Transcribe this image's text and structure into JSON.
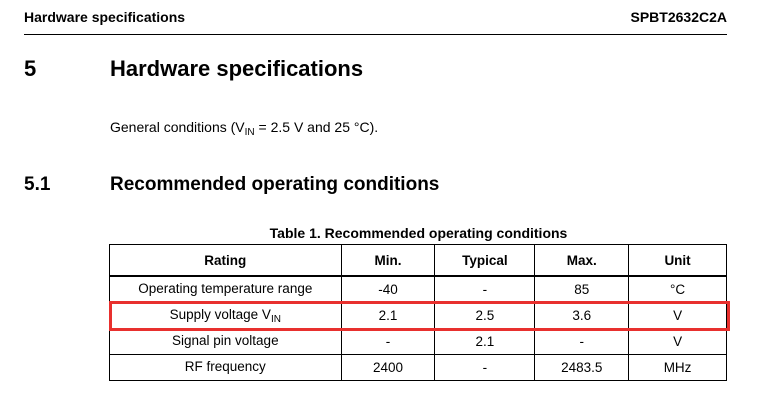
{
  "header": {
    "left": "Hardware specifications",
    "right": "SPBT2632C2A"
  },
  "section": {
    "number": "5",
    "title": "Hardware specifications"
  },
  "conditions": {
    "prefix": "General conditions (V",
    "subscript": "IN",
    "suffix": " = 2.5 V and 25 °C)."
  },
  "subsection": {
    "number": "5.1",
    "title": "Recommended operating conditions"
  },
  "table": {
    "caption": "Table 1. Recommended operating conditions",
    "columns": [
      "Rating",
      "Min.",
      "Typical",
      "Max.",
      "Unit"
    ],
    "rows": [
      {
        "rating": "Operating temperature range",
        "rating_sub": "",
        "min": "-40",
        "typical": "-",
        "max": "85",
        "unit": "°C"
      },
      {
        "rating": "Supply voltage V",
        "rating_sub": "IN",
        "min": "2.1",
        "typical": "2.5",
        "max": "3.6",
        "unit": "V"
      },
      {
        "rating": "Signal pin voltage",
        "rating_sub": "",
        "min": "-",
        "typical": "2.1",
        "max": "-",
        "unit": "V"
      },
      {
        "rating": "RF frequency",
        "rating_sub": "",
        "min": "2400",
        "typical": "-",
        "max": "2483.5",
        "unit": "MHz"
      }
    ]
  },
  "colors": {
    "highlight": "#e8302e"
  }
}
